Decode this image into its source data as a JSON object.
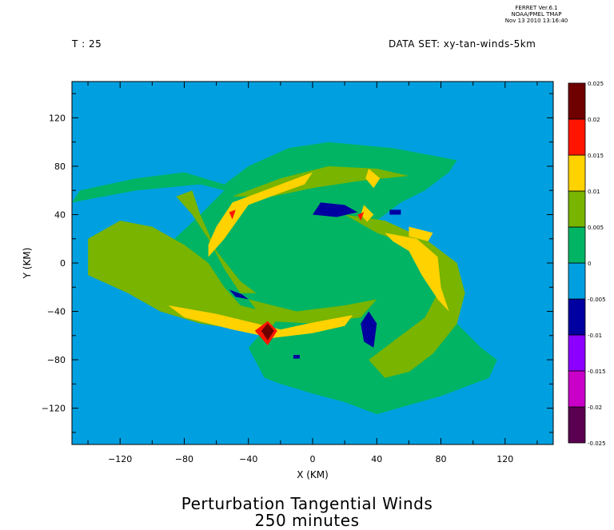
{
  "header": {
    "time_label": "T : 25",
    "dataset_label": "DATA SET: xy-tan-winds-5km",
    "ferret_lines": [
      "FERRET Ver.6.1",
      "NOAA/PMEL TMAP",
      "Nov 13 2010 13:16:40"
    ]
  },
  "footer": {
    "title": "Perturbation Tangential Winds",
    "subtitle": "250 minutes"
  },
  "chart_data": {
    "type": "heatmap",
    "xlabel": "X (KM)",
    "ylabel": "Y (KM)",
    "xlim": [
      -150,
      150
    ],
    "ylim": [
      -150,
      150
    ],
    "x_ticks": [
      -120,
      -80,
      -40,
      0,
      40,
      80,
      120
    ],
    "y_ticks": [
      -120,
      -80,
      -40,
      0,
      40,
      80,
      120
    ],
    "colorbar": {
      "levels": [
        "-0.025",
        "-0.02",
        "-0.015",
        "-0.01",
        "-0.005",
        "0",
        "0.005",
        "0.01",
        "0.015",
        "0.02",
        "0.025"
      ],
      "colors": [
        "#5a0050",
        "#c800c8",
        "#8c00ff",
        "#0000a0",
        "#00a0e0",
        "#00b464",
        "#78b400",
        "#ffd200",
        "#ff1400",
        "#6e0000"
      ]
    },
    "background_color": "#00a0e0",
    "regions": [
      {
        "level": "0 to 0.005",
        "color": "#00b464",
        "polygon": [
          [
            -150,
            50
          ],
          [
            -110,
            60
          ],
          [
            -70,
            65
          ],
          [
            -55,
            60
          ],
          [
            -70,
            40
          ],
          [
            -90,
            15
          ],
          [
            -95,
            -10
          ],
          [
            -85,
            -30
          ],
          [
            -70,
            -45
          ],
          [
            -60,
            -50
          ],
          [
            -40,
            -50
          ],
          [
            -30,
            -55
          ],
          [
            -40,
            -70
          ],
          [
            -30,
            -95
          ],
          [
            -20,
            -100
          ],
          [
            0,
            -108
          ],
          [
            20,
            -115
          ],
          [
            40,
            -125
          ],
          [
            80,
            -110
          ],
          [
            100,
            -100
          ],
          [
            110,
            -95
          ],
          [
            115,
            -80
          ],
          [
            105,
            -70
          ],
          [
            90,
            -50
          ],
          [
            90,
            -20
          ],
          [
            80,
            -5
          ],
          [
            60,
            10
          ],
          [
            45,
            25
          ],
          [
            40,
            35
          ],
          [
            55,
            50
          ],
          [
            70,
            60
          ],
          [
            85,
            75
          ],
          [
            90,
            85
          ],
          [
            50,
            95
          ],
          [
            10,
            100
          ],
          [
            -15,
            95
          ],
          [
            -40,
            80
          ],
          [
            -55,
            65
          ],
          [
            -80,
            75
          ],
          [
            -110,
            70
          ],
          [
            -145,
            60
          ]
        ]
      },
      {
        "level": "0.005 to 0.01",
        "color": "#78b400",
        "polygon": [
          [
            -140,
            -10
          ],
          [
            -140,
            20
          ],
          [
            -120,
            35
          ],
          [
            -100,
            30
          ],
          [
            -80,
            15
          ],
          [
            -65,
            0
          ],
          [
            -55,
            -20
          ],
          [
            -45,
            -35
          ],
          [
            -30,
            -40
          ],
          [
            -20,
            -42
          ],
          [
            -25,
            -52
          ],
          [
            -45,
            -55
          ],
          [
            -70,
            -50
          ],
          [
            -95,
            -40
          ],
          [
            -115,
            -25
          ]
        ]
      },
      {
        "level": "0.005 to 0.01",
        "color": "#78b400",
        "polygon": [
          [
            -75,
            60
          ],
          [
            -70,
            40
          ],
          [
            -60,
            10
          ],
          [
            -45,
            -15
          ],
          [
            -35,
            -25
          ],
          [
            -45,
            -25
          ],
          [
            -55,
            -5
          ],
          [
            -65,
            20
          ],
          [
            -75,
            40
          ],
          [
            -85,
            55
          ]
        ]
      },
      {
        "level": "0.005 to 0.01",
        "color": "#78b400",
        "polygon": [
          [
            -50,
            55
          ],
          [
            -20,
            70
          ],
          [
            10,
            80
          ],
          [
            40,
            78
          ],
          [
            60,
            72
          ],
          [
            30,
            68
          ],
          [
            0,
            62
          ],
          [
            -25,
            55
          ]
        ]
      },
      {
        "level": "0.005 to 0.01",
        "color": "#78b400",
        "polygon": [
          [
            20,
            40
          ],
          [
            45,
            35
          ],
          [
            70,
            20
          ],
          [
            90,
            0
          ],
          [
            95,
            -25
          ],
          [
            90,
            -50
          ],
          [
            75,
            -75
          ],
          [
            60,
            -90
          ],
          [
            45,
            -95
          ],
          [
            35,
            -80
          ],
          [
            50,
            -65
          ],
          [
            70,
            -45
          ],
          [
            80,
            -20
          ],
          [
            75,
            0
          ],
          [
            60,
            15
          ],
          [
            40,
            25
          ]
        ]
      },
      {
        "level": "0.005 to 0.01",
        "color": "#78b400",
        "polygon": [
          [
            -40,
            -30
          ],
          [
            -10,
            -40
          ],
          [
            20,
            -35
          ],
          [
            40,
            -30
          ],
          [
            30,
            -45
          ],
          [
            0,
            -50
          ],
          [
            -30,
            -48
          ]
        ]
      },
      {
        "level": "0.01 to 0.015",
        "color": "#ffd200",
        "polygon": [
          [
            -60,
            30
          ],
          [
            -50,
            50
          ],
          [
            -30,
            60
          ],
          [
            -10,
            70
          ],
          [
            0,
            75
          ],
          [
            -5,
            65
          ],
          [
            -20,
            58
          ],
          [
            -40,
            48
          ],
          [
            -55,
            20
          ],
          [
            -65,
            5
          ],
          [
            -65,
            15
          ]
        ]
      },
      {
        "level": "0.01 to 0.015",
        "color": "#ffd200",
        "polygon": [
          [
            45,
            25
          ],
          [
            65,
            20
          ],
          [
            78,
            5
          ],
          [
            80,
            -20
          ],
          [
            85,
            -40
          ],
          [
            78,
            -30
          ],
          [
            68,
            -10
          ],
          [
            60,
            10
          ],
          [
            50,
            18
          ]
        ]
      },
      {
        "level": "0.01 to 0.015",
        "color": "#ffd200",
        "polygon": [
          [
            -90,
            -35
          ],
          [
            -60,
            -42
          ],
          [
            -35,
            -50
          ],
          [
            -20,
            -55
          ],
          [
            -10,
            -52
          ],
          [
            5,
            -48
          ],
          [
            25,
            -43
          ],
          [
            20,
            -52
          ],
          [
            0,
            -58
          ],
          [
            -25,
            -62
          ],
          [
            -50,
            -55
          ],
          [
            -80,
            -45
          ]
        ]
      },
      {
        "level": "0.01 to 0.015",
        "color": "#ffd200",
        "polygon": [
          [
            32,
            48
          ],
          [
            38,
            40
          ],
          [
            34,
            34
          ],
          [
            30,
            40
          ]
        ]
      },
      {
        "level": "0.01 to 0.015",
        "color": "#ffd200",
        "polygon": [
          [
            35,
            78
          ],
          [
            42,
            70
          ],
          [
            38,
            62
          ],
          [
            33,
            70
          ]
        ]
      },
      {
        "level": "0.01 to 0.015",
        "color": "#ffd200",
        "polygon": [
          [
            60,
            30
          ],
          [
            75,
            25
          ],
          [
            72,
            18
          ],
          [
            60,
            22
          ]
        ]
      },
      {
        "level": "0.015 to 0.02",
        "color": "#ff1400",
        "polygon": [
          [
            -36,
            -56
          ],
          [
            -28,
            -48
          ],
          [
            -22,
            -56
          ],
          [
            -28,
            -68
          ]
        ]
      },
      {
        "level": "0.015 to 0.02",
        "color": "#ff1400",
        "polygon": [
          [
            -52,
            42
          ],
          [
            -48,
            44
          ],
          [
            -50,
            36
          ]
        ]
      },
      {
        "level": "0.015 to 0.02",
        "color": "#ff1400",
        "polygon": [
          [
            28,
            40
          ],
          [
            32,
            42
          ],
          [
            30,
            35
          ]
        ]
      },
      {
        "level": "0.02 to 0.025",
        "color": "#6e0000",
        "polygon": [
          [
            -32,
            -56
          ],
          [
            -28,
            -50
          ],
          [
            -24,
            -56
          ],
          [
            -28,
            -64
          ]
        ]
      },
      {
        "level": "-0.01 to -0.005",
        "color": "#0000a0",
        "polygon": [
          [
            5,
            50
          ],
          [
            20,
            48
          ],
          [
            28,
            42
          ],
          [
            15,
            38
          ],
          [
            0,
            40
          ]
        ]
      },
      {
        "level": "-0.01 to -0.005",
        "color": "#0000a0",
        "polygon": [
          [
            35,
            -40
          ],
          [
            40,
            -50
          ],
          [
            38,
            -70
          ],
          [
            32,
            -65
          ],
          [
            30,
            -50
          ]
        ]
      },
      {
        "level": "-0.01 to -0.005",
        "color": "#0000a0",
        "polygon": [
          [
            -52,
            -22
          ],
          [
            -44,
            -26
          ],
          [
            -40,
            -30
          ],
          [
            -48,
            -28
          ]
        ]
      },
      {
        "level": "-0.01 to -0.005",
        "color": "#0000a0",
        "polygon": [
          [
            48,
            44
          ],
          [
            55,
            44
          ],
          [
            55,
            40
          ],
          [
            48,
            40
          ]
        ]
      },
      {
        "level": "-0.01 to -0.005",
        "color": "#0000a0",
        "polygon": [
          [
            -12,
            -76
          ],
          [
            -8,
            -76
          ],
          [
            -8,
            -79
          ],
          [
            -12,
            -79
          ]
        ]
      }
    ]
  }
}
